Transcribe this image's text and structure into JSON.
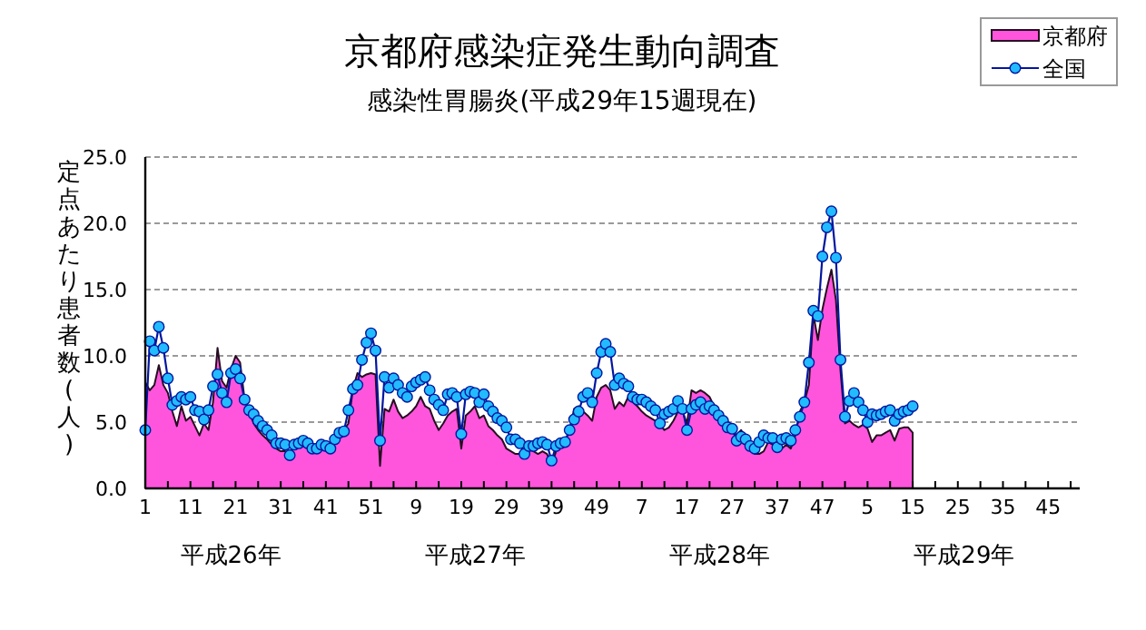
{
  "chart_data": {
    "type": "line",
    "title": "京都府感染症発生動向調査",
    "subtitle": "感染性胃腸炎(平成29年15週現在)",
    "ylabel": "定点あたり患者数(人)",
    "categories": [
      "1",
      null,
      null,
      null,
      null,
      null,
      null,
      null,
      null,
      null,
      "11",
      null,
      null,
      null,
      null,
      null,
      null,
      null,
      null,
      null,
      "21",
      null,
      null,
      null,
      null,
      null,
      null,
      null,
      null,
      null,
      "31",
      null,
      null,
      null,
      null,
      null,
      null,
      null,
      null,
      null,
      "41",
      null,
      null,
      null,
      null,
      null,
      null,
      null,
      null,
      null,
      "51",
      null,
      null,
      null,
      null,
      null,
      null,
      null,
      null,
      null,
      "9",
      null,
      null,
      null,
      null,
      null,
      null,
      null,
      null,
      null,
      "19",
      null,
      null,
      null,
      null,
      null,
      null,
      null,
      null,
      null,
      "29",
      null,
      null,
      null,
      null,
      null,
      null,
      null,
      null,
      null,
      "39",
      null,
      null,
      null,
      null,
      null,
      null,
      null,
      null,
      null,
      "49",
      null,
      null,
      null,
      null,
      null,
      null,
      null,
      null,
      null,
      "7",
      null,
      null,
      null,
      null,
      null,
      null,
      null,
      null,
      null,
      "17",
      null,
      null,
      null,
      null,
      null,
      null,
      null,
      null,
      null,
      "27",
      null,
      null,
      null,
      null,
      null,
      null,
      null,
      null,
      null,
      "37",
      null,
      null,
      null,
      null,
      null,
      null,
      null,
      null,
      null,
      "47",
      null,
      null,
      null,
      null,
      null,
      null,
      null,
      null,
      null,
      "5",
      null,
      null,
      null,
      null,
      null,
      null,
      null,
      null,
      null,
      "15",
      null,
      null,
      null,
      null,
      null,
      null,
      null,
      null,
      null,
      "25",
      null,
      null,
      null,
      null,
      null,
      null,
      null,
      null,
      null,
      "35",
      null,
      null,
      null,
      null,
      null,
      null,
      null,
      null,
      null,
      "45",
      null,
      null,
      null,
      null,
      null,
      null,
      null
    ],
    "series": [
      {
        "name": "京都府",
        "type": "area",
        "color": "#ff55dd",
        "values": [
          8.0,
          7.4,
          7.8,
          9.3,
          7.8,
          7.2,
          5.8,
          4.7,
          6.2,
          5.1,
          5.4,
          4.7,
          4.0,
          4.9,
          4.4,
          6.5,
          10.6,
          8.1,
          7.6,
          9.0,
          10.0,
          9.5,
          6.7,
          5.8,
          4.9,
          4.4,
          4.0,
          3.7,
          3.3,
          3.0,
          2.8,
          2.8,
          2.6,
          3.2,
          3.2,
          3.4,
          3.0,
          3.0,
          3.2,
          3.0,
          3.2,
          3.2,
          3.4,
          4.0,
          4.4,
          4.9,
          7.5,
          8.7,
          8.4,
          8.6,
          8.7,
          8.6,
          1.7,
          6.0,
          5.8,
          6.7,
          5.8,
          5.3,
          5.5,
          5.8,
          6.2,
          6.9,
          6.2,
          6.0,
          5.1,
          4.4,
          4.9,
          5.5,
          5.8,
          6.0,
          3.0,
          5.5,
          5.8,
          6.2,
          5.3,
          5.5,
          4.7,
          4.4,
          4.0,
          3.7,
          3.0,
          2.8,
          2.6,
          2.6,
          2.8,
          3.0,
          2.8,
          2.6,
          2.8,
          2.6,
          1.8,
          2.8,
          3.3,
          3.6,
          4.4,
          6.0,
          6.2,
          5.8,
          5.5,
          5.1,
          6.9,
          7.6,
          7.8,
          7.4,
          6.0,
          6.5,
          6.2,
          6.9,
          6.5,
          6.2,
          5.8,
          5.5,
          5.3,
          5.1,
          4.8,
          4.4,
          4.6,
          5.1,
          5.8,
          5.8,
          4.9,
          7.4,
          7.2,
          7.4,
          7.2,
          6.9,
          6.2,
          5.8,
          5.3,
          4.8,
          4.4,
          4.0,
          4.4,
          3.7,
          3.3,
          2.6,
          2.6,
          2.8,
          3.5,
          3.3,
          3.5,
          3.0,
          3.3,
          3.0,
          4.0,
          5.8,
          6.5,
          7.8,
          13.1,
          11.2,
          13.5,
          15.1,
          16.5,
          14.2,
          8.9,
          4.9,
          5.1,
          4.8,
          4.6,
          4.8,
          4.5,
          3.5,
          4.0,
          4.0,
          4.2,
          4.4,
          3.6,
          4.5,
          4.6,
          4.6,
          4.2,
          null,
          null,
          null,
          null,
          null,
          null,
          null,
          null,
          null,
          null,
          null,
          null,
          null,
          null,
          null,
          null,
          null,
          null,
          null,
          null,
          null,
          null,
          null,
          null,
          null,
          null,
          null,
          null,
          null,
          null,
          null,
          null,
          null,
          null,
          null,
          null,
          null
        ]
      },
      {
        "name": "全国",
        "color": "#22bbff",
        "marker": "circle",
        "values": [
          4.4,
          11.1,
          10.4,
          12.2,
          10.6,
          8.3,
          6.3,
          6.6,
          6.9,
          6.7,
          6.9,
          5.9,
          5.8,
          5.2,
          5.9,
          7.7,
          8.6,
          7.2,
          6.5,
          8.7,
          9.0,
          8.3,
          6.7,
          5.9,
          5.6,
          5.1,
          4.7,
          4.4,
          4.0,
          3.4,
          3.4,
          3.3,
          2.5,
          3.3,
          3.4,
          3.6,
          3.4,
          3.0,
          3.0,
          3.3,
          3.2,
          3.0,
          3.7,
          4.2,
          4.3,
          5.9,
          7.5,
          7.8,
          9.7,
          11.0,
          11.7,
          10.4,
          3.6,
          8.4,
          7.6,
          8.3,
          7.8,
          7.2,
          6.9,
          7.7,
          8.0,
          8.2,
          8.4,
          7.4,
          6.7,
          6.3,
          5.9,
          7.1,
          7.2,
          6.9,
          4.1,
          7.1,
          7.3,
          7.2,
          6.5,
          7.1,
          6.2,
          5.8,
          5.3,
          5.1,
          4.6,
          3.7,
          3.7,
          3.4,
          2.6,
          3.2,
          3.2,
          3.4,
          3.5,
          3.3,
          2.1,
          3.2,
          3.4,
          3.5,
          4.4,
          5.2,
          5.8,
          6.9,
          7.2,
          6.5,
          8.7,
          10.3,
          10.9,
          10.3,
          7.8,
          8.3,
          7.9,
          7.7,
          6.9,
          6.7,
          6.7,
          6.5,
          6.2,
          5.9,
          4.9,
          5.6,
          5.8,
          6.0,
          6.6,
          6.0,
          4.4,
          6.0,
          6.3,
          6.5,
          6.0,
          6.2,
          5.9,
          5.5,
          5.1,
          4.6,
          4.5,
          3.6,
          3.9,
          3.7,
          3.2,
          3.0,
          3.5,
          4.0,
          3.8,
          3.8,
          3.1,
          3.7,
          3.8,
          3.6,
          4.4,
          5.4,
          6.5,
          9.5,
          13.4,
          13.0,
          17.5,
          19.7,
          20.9,
          17.4,
          9.7,
          5.4,
          6.6,
          7.2,
          6.5,
          5.9,
          5.0,
          5.6,
          5.5,
          5.6,
          5.8,
          5.9,
          5.1,
          5.6,
          5.8,
          5.9,
          6.2,
          null,
          null,
          null,
          null,
          null,
          null,
          null,
          null,
          null,
          null,
          null,
          null,
          null,
          null,
          null,
          null,
          null,
          null,
          null,
          null,
          null,
          null,
          null,
          null,
          null,
          null,
          null,
          null,
          null,
          null,
          null,
          null,
          null,
          null,
          null,
          null,
          null
        ]
      }
    ],
    "ylim": [
      0,
      25
    ],
    "yticks": [
      {
        "value": 0,
        "label": "0.0"
      },
      {
        "value": 5,
        "label": "5.0"
      },
      {
        "value": 10,
        "label": "10.0"
      },
      {
        "value": 15,
        "label": "15.0"
      },
      {
        "value": 20,
        "label": "20.0"
      },
      {
        "value": 25,
        "label": "25.0"
      }
    ],
    "grid": "y",
    "legend": "top right",
    "annotations": [
      "平成26年",
      "平成27年",
      "平成28年",
      "平成29年"
    ]
  }
}
